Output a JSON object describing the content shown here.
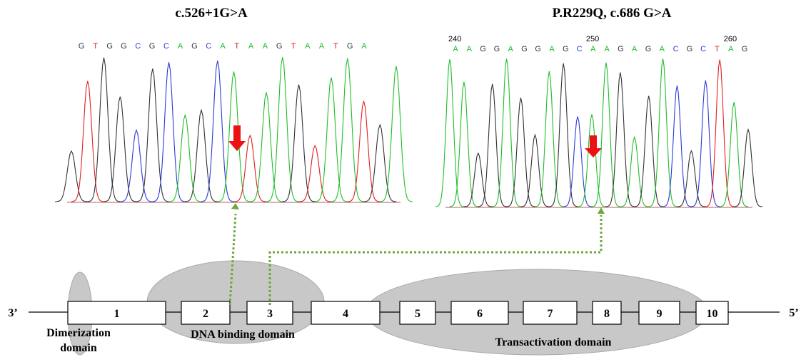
{
  "panels": [
    {
      "title": "c.526+1G>A",
      "positions": [],
      "sequence": [
        "G",
        "T",
        "G",
        "G",
        "C",
        "G",
        "C",
        "A",
        "G",
        "C",
        "A",
        "T",
        "A",
        "A",
        "G",
        "T",
        "A",
        "A",
        "T",
        "G",
        "A"
      ]
    },
    {
      "title": "P.R229Q, c.686 G>A",
      "positions": [
        "240",
        "250",
        "260"
      ],
      "sequence": [
        "A",
        "A",
        "G",
        "G",
        "A",
        "G",
        "G",
        "A",
        "G",
        "C",
        "A",
        "A",
        "G",
        "A",
        "G",
        "A",
        "C",
        "G",
        "C",
        "T",
        "A",
        "G"
      ]
    }
  ],
  "base_colors": {
    "A": "#1fbf2a",
    "C": "#2b3bd6",
    "G": "#333333",
    "T": "#e02020"
  },
  "gene": {
    "left_end": "3’",
    "right_end": "5’",
    "exons": [
      "1",
      "2",
      "3",
      "4",
      "5",
      "6",
      "7",
      "8",
      "9",
      "10"
    ],
    "domains": {
      "dimerization": [
        "Dimerization",
        "domain"
      ],
      "dna_binding": "DNA binding domain",
      "transactivation": "Transactivation domain"
    }
  }
}
